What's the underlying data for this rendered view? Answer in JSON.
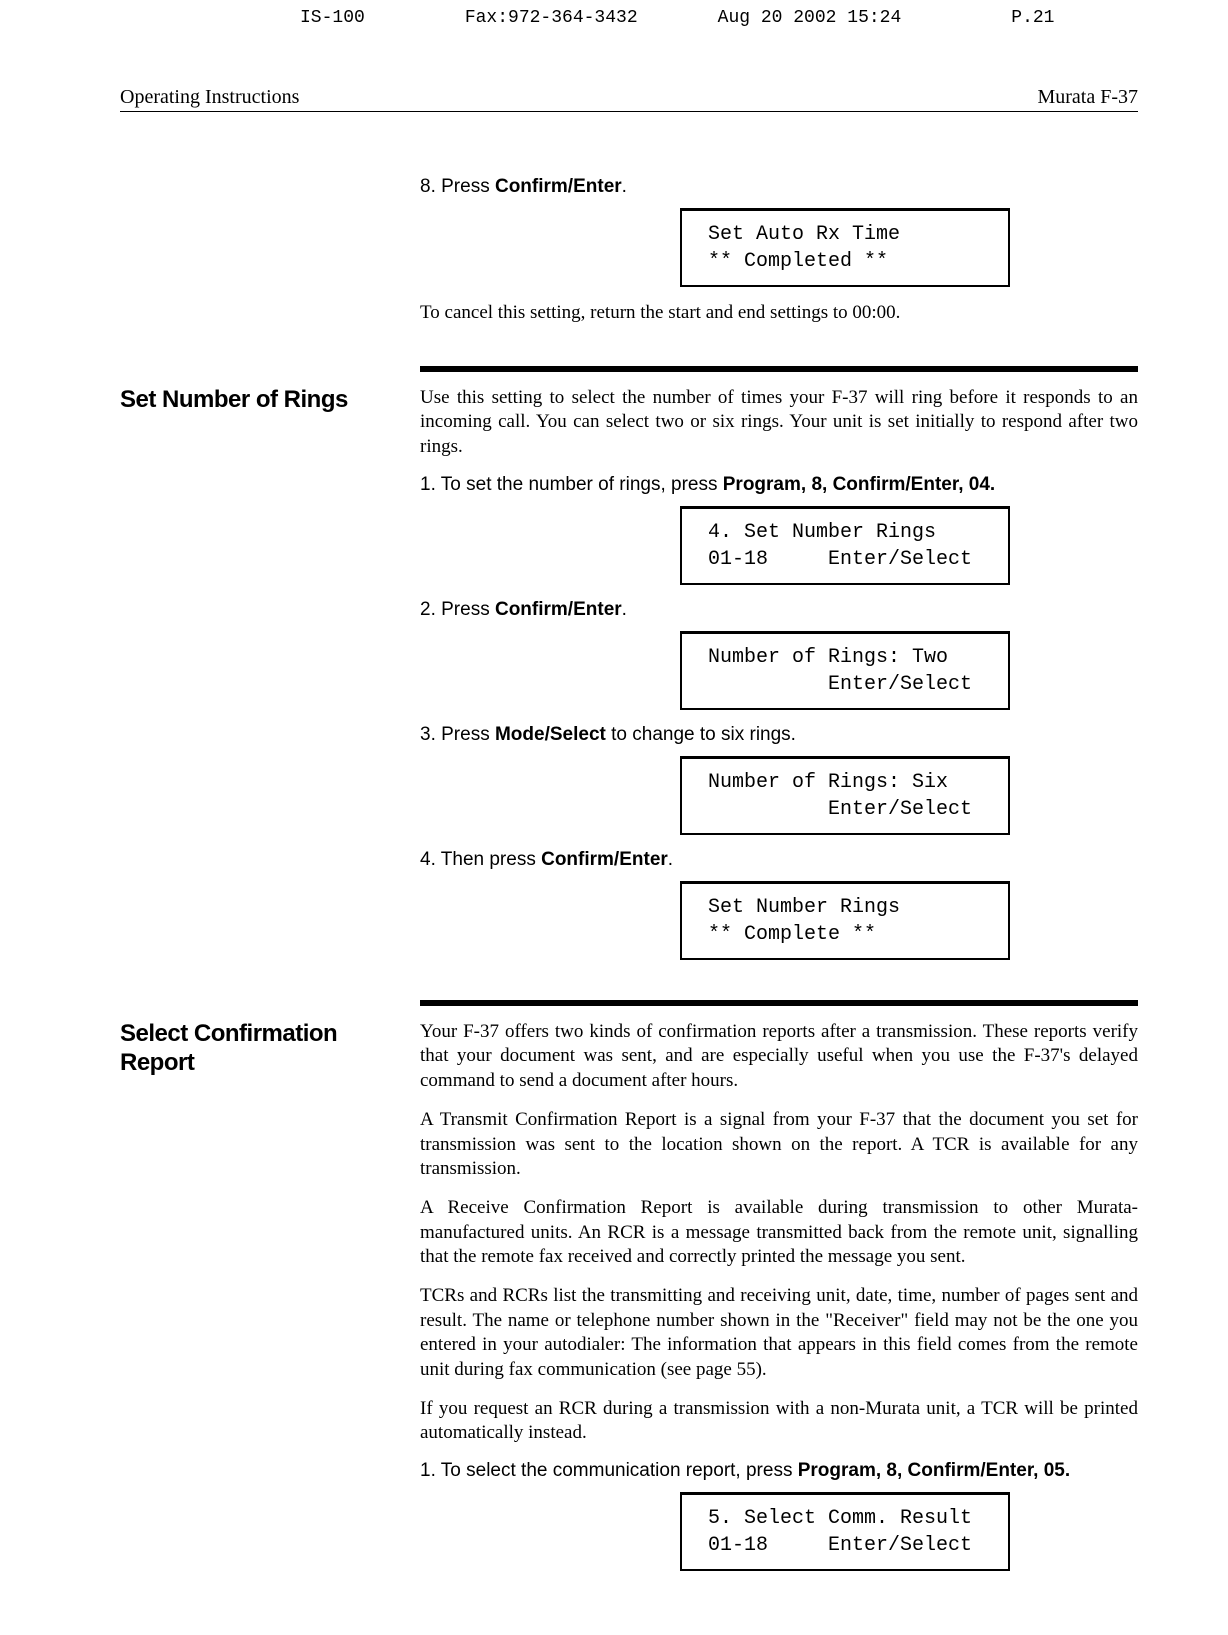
{
  "fax_header": {
    "model": "IS-100",
    "fax": "Fax:972-364-3432",
    "date": "Aug 20 2002 15:24",
    "page": "P.21"
  },
  "doc_header": {
    "left": "Operating Instructions",
    "right": "Murata F-37"
  },
  "section1": {
    "step8": "8. Press ",
    "step8_bold": "Confirm/Enter",
    "step8_end": ".",
    "display1_line1": " Set Auto Rx Time",
    "display1_line2": " ** Completed **",
    "cancel_text": "To cancel this setting, return the start and end settings to 00:00."
  },
  "section2": {
    "heading": "Set Number of Rings",
    "intro": "Use this setting to select the number of times your F-37 will ring before it responds to an incoming call. You can select two or six rings. Your unit is set initially to respond after two rings.",
    "step1_a": "1. To set the number of rings, press ",
    "step1_b": "Program, 8, Confirm/Enter, 04.",
    "display1_line1": " 4. Set Number Rings",
    "display1_line2": " 01-18     Enter/Select",
    "step2_a": "2. Press ",
    "step2_b": "Confirm/Enter",
    "step2_c": ".",
    "display2_line1": " Number of Rings: Two",
    "display2_line2": "           Enter/Select",
    "step3_a": "3. Press ",
    "step3_b": "Mode/Select",
    "step3_c": " to change to six rings.",
    "display3_line1": " Number of Rings: Six",
    "display3_line2": "           Enter/Select",
    "step4_a": "4. Then press ",
    "step4_b": "Confirm/Enter",
    "step4_c": ".",
    "display4_line1": " Set Number Rings",
    "display4_line2": " ** Complete **"
  },
  "section3": {
    "heading": "Select Confirmation Report",
    "para1": "Your F-37 offers two kinds of confirmation reports after a transmission. These reports verify that your document was sent, and are especially useful when you use the F-37's delayed command to send a document after hours.",
    "para2": "A Transmit Confirmation Report is a signal from your F-37 that the document you set for transmission was sent to the location shown on the report. A TCR is available for any transmission.",
    "para3": "A Receive Confirmation Report is available during transmission to other Murata-manufactured units. An RCR is a message transmitted back from the remote unit, signalling that the remote fax received and correctly printed the message you sent.",
    "para4": "TCRs and RCRs list the transmitting and receiving unit, date, time, number of pages sent and result. The name or telephone number shown in the \"Receiver\" field may not be the one you entered in your autodialer: The information that appears in this field comes from the remote unit during fax communication (see page 55).",
    "para5": "If you request an RCR during a transmission with a non-Murata unit, a TCR will be printed automatically instead.",
    "step1_a": "1. To select the communication report, press ",
    "step1_b": "Program, 8, Confirm/Enter, 05.",
    "display1_line1": " 5. Select Comm. Result",
    "display1_line2": " 01-18     Enter/Select"
  }
}
